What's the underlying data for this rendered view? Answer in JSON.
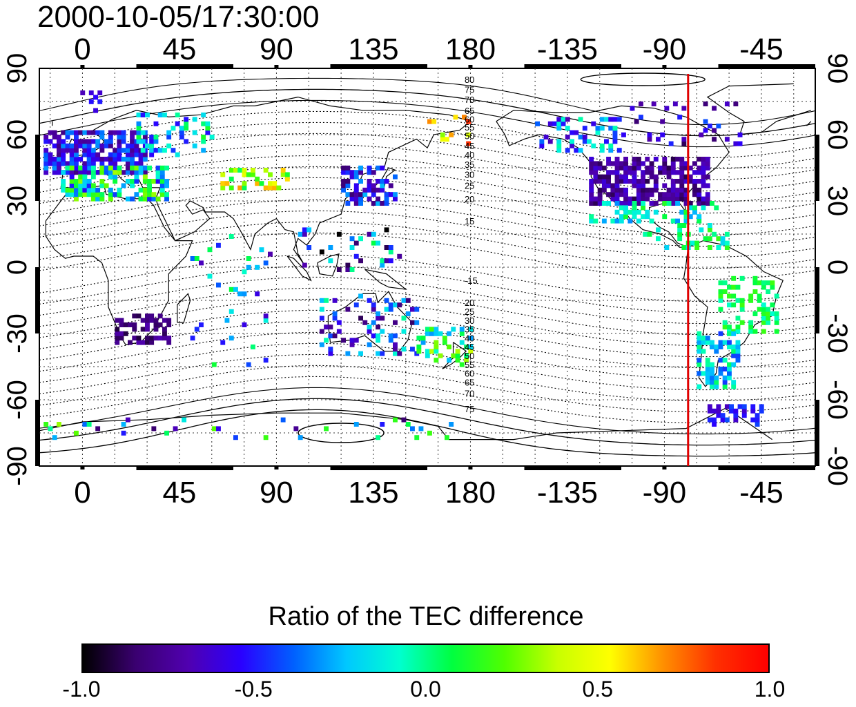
{
  "title": "2000-10-05/17:30:00",
  "map": {
    "top_lon_labels": [
      "0",
      "45",
      "90",
      "135",
      "180",
      "-135",
      "-90",
      "-45"
    ],
    "bottom_lon_labels": [
      "0",
      "45",
      "90",
      "135",
      "180",
      "-135",
      "-90",
      "-45"
    ],
    "left_lat_labels": [
      "90",
      "60",
      "30",
      "0",
      "-30",
      "-60",
      "-90"
    ],
    "right_lat_labels": [
      "90",
      "60",
      "30",
      "0",
      "-30",
      "-60",
      "-90"
    ],
    "magnetic_contour_labels_north": [
      "80",
      "75",
      "70",
      "65",
      "60",
      "55",
      "50",
      "45",
      "40",
      "35",
      "30",
      "25",
      "20",
      "15"
    ],
    "magnetic_contour_labels_south": [
      "-15",
      "20",
      "25",
      "30",
      "35",
      "40",
      "45",
      "50",
      "55",
      "60",
      "65",
      "70",
      "75"
    ],
    "marker_line": {
      "longitude": -79,
      "color": "#e00000"
    },
    "grid": "dotted"
  },
  "colorbar": {
    "title": "Ratio of the TEC difference",
    "range": [
      -1.0,
      1.0
    ],
    "tick_labels": [
      "-1.0",
      "-0.5",
      "0.0",
      "0.5",
      "1.0"
    ],
    "colors": [
      "#000000",
      "#3a0070",
      "#5000b0",
      "#2a00ff",
      "#0060ff",
      "#00c8ff",
      "#00ffd0",
      "#00ff40",
      "#50ff00",
      "#c8ff00",
      "#ffff00",
      "#ff9000",
      "#ff3000",
      "#ff0000"
    ]
  }
}
